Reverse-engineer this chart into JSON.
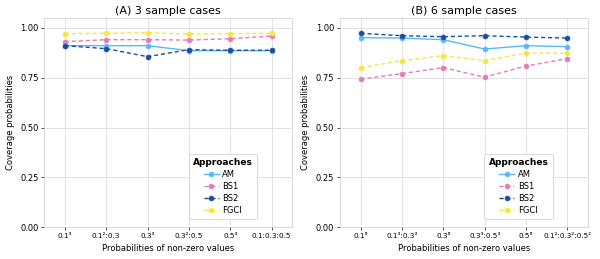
{
  "panel_A": {
    "title": "(A) 3 sample cases",
    "x_labels": [
      "0.1³",
      "0.1²:0.3",
      "0.3³",
      "0.3²:0.5",
      "0.5³",
      "0.1:0.3:0.5"
    ],
    "AM": [
      0.91,
      0.91,
      0.91,
      0.885,
      0.885,
      0.885
    ],
    "BS1": [
      0.93,
      0.94,
      0.94,
      0.938,
      0.945,
      0.958
    ],
    "BS2": [
      0.91,
      0.895,
      0.855,
      0.89,
      0.887,
      0.887
    ],
    "FGCI": [
      0.97,
      0.972,
      0.975,
      0.968,
      0.97,
      0.972
    ]
  },
  "panel_B": {
    "title": "(B) 6 sample cases",
    "x_labels": [
      "0.1⁶",
      "0.1³:0.3³",
      "0.3⁶",
      "0.3³:0.5³",
      "0.5⁶",
      "0.1²:0.3²:0.5²"
    ],
    "AM": [
      0.95,
      0.948,
      0.94,
      0.893,
      0.91,
      0.905
    ],
    "BS1": [
      0.742,
      0.77,
      0.8,
      0.752,
      0.808,
      0.845
    ],
    "BS2": [
      0.972,
      0.96,
      0.955,
      0.96,
      0.953,
      0.948
    ],
    "FGCI": [
      0.8,
      0.835,
      0.86,
      0.835,
      0.873,
      0.872
    ]
  },
  "colors": {
    "AM": "#5bb8f5",
    "BS1": "#e37cb8",
    "BS2": "#1a4fa0",
    "FGCI": "#f5e642"
  },
  "ylabel": "Coverage probabilities",
  "xlabel": "Probabilities of non-zero values",
  "ylim": [
    0.0,
    1.05
  ],
  "yticks": [
    0.0,
    0.25,
    0.5,
    0.75,
    1.0
  ],
  "legend_title": "Approaches",
  "bg_color": "#ffffff",
  "grid_color": "#dddddd"
}
